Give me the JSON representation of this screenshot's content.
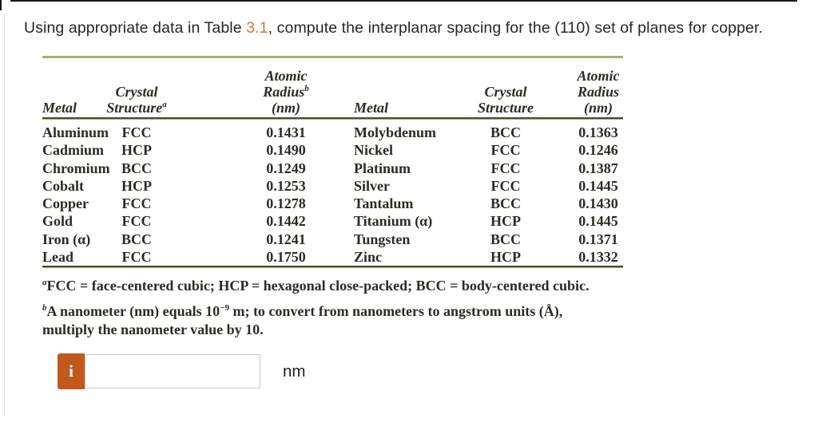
{
  "question": {
    "prefix": "Using appropriate data in Table ",
    "link_text": "3.1",
    "suffix": ", compute the interplanar spacing for the (110) set of planes for copper."
  },
  "table": {
    "headers": {
      "metal_left": "Metal",
      "crystal_l1": "Crystal",
      "crystal_l2": "Structure",
      "crystal_sup": "a",
      "radius_l1": "Atomic",
      "radius_l2": "Radius",
      "radius_sup": "b",
      "radius_l3": "(nm)",
      "metal_right": "Metal",
      "crystal2_l1": "Crystal",
      "crystal2_l2": "Structure",
      "radius2_l1": "Atomic",
      "radius2_l2": "Radius",
      "radius2_l3": "(nm)"
    },
    "rows": [
      {
        "m1": "Aluminum",
        "s1": "FCC",
        "r1": "0.1431",
        "m2": "Molybdenum",
        "s2": "BCC",
        "r2": "0.1363"
      },
      {
        "m1": "Cadmium",
        "s1": "HCP",
        "r1": "0.1490",
        "m2": "Nickel",
        "s2": "FCC",
        "r2": "0.1246"
      },
      {
        "m1": "Chromium",
        "s1": "BCC",
        "r1": "0.1249",
        "m2": "Platinum",
        "s2": "FCC",
        "r2": "0.1387"
      },
      {
        "m1": "Cobalt",
        "s1": "HCP",
        "r1": "0.1253",
        "m2": "Silver",
        "s2": "FCC",
        "r2": "0.1445"
      },
      {
        "m1": "Copper",
        "s1": "FCC",
        "r1": "0.1278",
        "m2": "Tantalum",
        "s2": "BCC",
        "r2": "0.1430"
      },
      {
        "m1": "Gold",
        "s1": "FCC",
        "r1": "0.1442",
        "m2": "Titanium (α)",
        "s2": "HCP",
        "r2": "0.1445"
      },
      {
        "m1": "Iron (α)",
        "s1": "BCC",
        "r1": "0.1241",
        "m2": "Tungsten",
        "s2": "BCC",
        "r2": "0.1371"
      },
      {
        "m1": "Lead",
        "s1": "FCC",
        "r1": "0.1750",
        "m2": "Zinc",
        "s2": "HCP",
        "r2": "0.1332"
      }
    ],
    "footnotes": {
      "a_sup": "a",
      "a_text": "FCC = face-centered cubic; HCP = hexagonal close-packed; BCC = body-centered cubic.",
      "b_sup": "b",
      "b_text_1": "A nanometer (nm) equals 10",
      "b_exp": "−9",
      "b_text_2": " m; to convert from nanometers to angstrom units (Å),",
      "b_line2": "multiply the nanometer value by 10."
    }
  },
  "answer": {
    "info_icon": "i",
    "input_value": "",
    "unit": "nm"
  },
  "colors": {
    "link_orange": "#d9742c",
    "button_orange": "#c2591c",
    "rule_light_olive": "#a5af74",
    "rule_dark_olive": "#474b31",
    "top_border_black": "#161616",
    "divider_gray": "#dedede"
  }
}
